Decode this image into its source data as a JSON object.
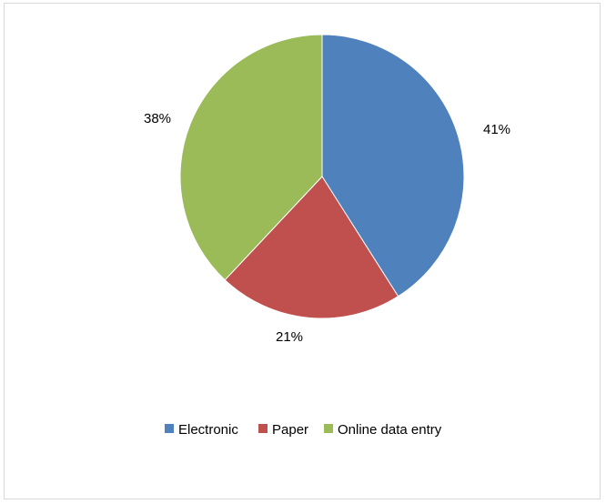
{
  "chart_data": {
    "type": "pie",
    "title": "",
    "categories": [
      "Electronic",
      "Paper",
      "Online data entry"
    ],
    "values": [
      41,
      21,
      38
    ],
    "unit": "%",
    "labels": [
      "41%",
      "21%",
      "38%"
    ],
    "colors": [
      "#4f81bd",
      "#c0504d",
      "#9bbb59"
    ],
    "start_angle_deg": 0,
    "direction": "clockwise",
    "legend": {
      "placement": "bottom",
      "entries": [
        "Electronic",
        "Paper",
        "Online data entry"
      ]
    }
  }
}
